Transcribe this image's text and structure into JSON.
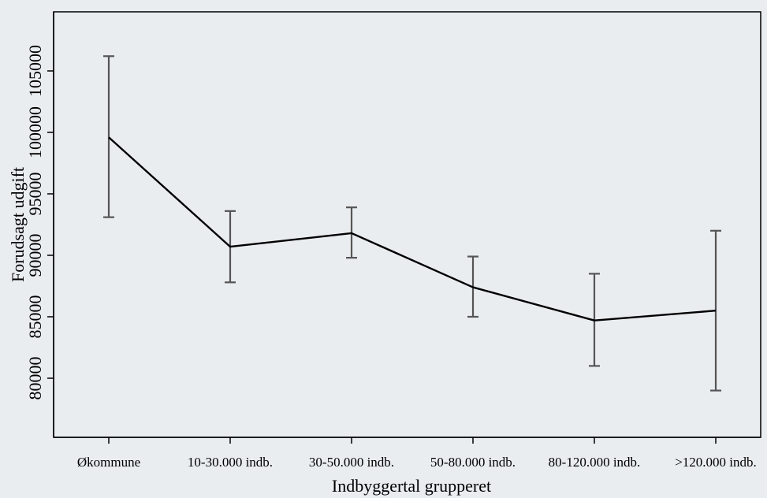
{
  "chart_data": {
    "type": "line",
    "xlabel": "Indbyggertal grupperet",
    "ylabel": "Forudsagt udgift",
    "categories": [
      "Økommune",
      "10-30.000 indb.",
      "30-50.000 indb.",
      "50-80.000 indb.",
      "80-120.000 indb.",
      ">120.000 indb."
    ],
    "yticks": [
      80000,
      85000,
      90000,
      95000,
      100000,
      105000
    ],
    "ylim": [
      75000,
      110000
    ],
    "series": [
      {
        "values": [
          99600,
          90700,
          91800,
          87400,
          84700,
          85500
        ],
        "lower": [
          93100,
          87800,
          89800,
          85000,
          81000,
          79000
        ],
        "upper": [
          106200,
          93600,
          93900,
          89900,
          88500,
          92000
        ]
      }
    ],
    "grid": false,
    "legend": "none",
    "colors": {
      "line": "#000000",
      "errorbar": "#555555",
      "background": "#e9edf0",
      "plot": "#e9edf0"
    }
  }
}
